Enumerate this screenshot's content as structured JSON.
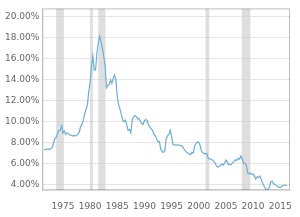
{
  "chart_data": {
    "type": "line",
    "color": "#6baed6",
    "grid": true,
    "xlim": [
      1971.2,
      2016.8
    ],
    "ylim": [
      3.5,
      20.8
    ],
    "xticks": [
      1975,
      1980,
      1985,
      1990,
      1995,
      2000,
      2005,
      2010,
      2015
    ],
    "yticks": [
      {
        "value": 4,
        "label": "4.00%"
      },
      {
        "value": 6,
        "label": "6.00%"
      },
      {
        "value": 8,
        "label": "8.00%"
      },
      {
        "value": 10,
        "label": "10.00%"
      },
      {
        "value": 12,
        "label": "12.00%"
      },
      {
        "value": 14,
        "label": "14.00%"
      },
      {
        "value": 16,
        "label": "16.00%"
      },
      {
        "value": 18,
        "label": "18.00%"
      },
      {
        "value": 20,
        "label": "20.00%"
      }
    ],
    "recession_bands": [
      [
        1973.75,
        1975.17
      ],
      [
        1980.0,
        1980.5
      ],
      [
        1981.5,
        1982.83
      ],
      [
        2001.25,
        2001.92
      ],
      [
        2007.92,
        2009.5
      ]
    ],
    "x": [
      1971.5,
      1971.75,
      1972.0,
      1972.25,
      1972.5,
      1972.75,
      1973.0,
      1973.25,
      1973.5,
      1973.75,
      1974.0,
      1974.25,
      1974.5,
      1974.75,
      1975.0,
      1975.25,
      1975.5,
      1975.75,
      1976.0,
      1976.25,
      1976.5,
      1976.75,
      1977.0,
      1977.25,
      1977.5,
      1977.75,
      1978.0,
      1978.25,
      1978.5,
      1978.75,
      1979.0,
      1979.25,
      1979.5,
      1979.75,
      1980.0,
      1980.25,
      1980.5,
      1980.75,
      1981.0,
      1981.25,
      1981.5,
      1981.75,
      1982.0,
      1982.25,
      1982.5,
      1982.75,
      1983.0,
      1983.25,
      1983.5,
      1983.75,
      1984.0,
      1984.25,
      1984.5,
      1984.75,
      1985.0,
      1985.25,
      1985.5,
      1985.75,
      1986.0,
      1986.25,
      1986.5,
      1986.75,
      1987.0,
      1987.25,
      1987.5,
      1987.75,
      1988.0,
      1988.25,
      1988.5,
      1988.75,
      1989.0,
      1989.25,
      1989.5,
      1989.75,
      1990.0,
      1990.25,
      1990.5,
      1990.75,
      1991.0,
      1991.25,
      1991.5,
      1991.75,
      1992.0,
      1992.25,
      1992.5,
      1992.75,
      1993.0,
      1993.25,
      1993.5,
      1993.75,
      1994.0,
      1994.25,
      1994.5,
      1994.75,
      1995.0,
      1995.25,
      1995.5,
      1995.75,
      1996.0,
      1996.25,
      1996.5,
      1996.75,
      1997.0,
      1997.25,
      1997.5,
      1997.75,
      1998.0,
      1998.25,
      1998.5,
      1998.75,
      1999.0,
      1999.25,
      1999.5,
      1999.75,
      2000.0,
      2000.25,
      2000.5,
      2000.75,
      2001.0,
      2001.25,
      2001.5,
      2001.75,
      2002.0,
      2002.25,
      2002.5,
      2002.75,
      2003.0,
      2003.25,
      2003.5,
      2003.75,
      2004.0,
      2004.25,
      2004.5,
      2004.75,
      2005.0,
      2005.25,
      2005.5,
      2005.75,
      2006.0,
      2006.25,
      2006.5,
      2006.75,
      2007.0,
      2007.25,
      2007.5,
      2007.75,
      2008.0,
      2008.25,
      2008.5,
      2008.75,
      2009.0,
      2009.25,
      2009.5,
      2009.75,
      2010.0,
      2010.25,
      2010.5,
      2010.75,
      2011.0,
      2011.25,
      2011.5,
      2011.75,
      2012.0,
      2012.25,
      2012.5,
      2012.75,
      2013.0,
      2013.25,
      2013.5,
      2013.75,
      2014.0,
      2014.25,
      2014.5,
      2014.75,
      2015.0,
      2015.25,
      2015.5,
      2015.75,
      2016.0,
      2016.25
    ],
    "values": [
      7.33,
      7.35,
      7.38,
      7.44,
      7.37,
      7.44,
      7.55,
      7.96,
      8.38,
      8.53,
      8.92,
      9.19,
      9.19,
      9.61,
      8.95,
      9.13,
      8.83,
      8.94,
      8.87,
      8.76,
      8.73,
      8.65,
      8.72,
      8.66,
      8.72,
      8.84,
      9.02,
      9.56,
      9.73,
      10.16,
      10.78,
      11.2,
      11.59,
      12.9,
      13.74,
      15.26,
      16.27,
      14.93,
      14.94,
      16.52,
      17.48,
      18.16,
      17.66,
      17.04,
      16.29,
      15.43,
      13.24,
      13.44,
      13.54,
      13.98,
      13.67,
      14.14,
      14.47,
      13.95,
      12.43,
      11.63,
      11.22,
      10.72,
      10.17,
      10.05,
      10.17,
      9.71,
      9.2,
      9.28,
      8.96,
      10.22,
      10.47,
      10.61,
      10.53,
      10.27,
      10.32,
      10.05,
      9.84,
      9.74,
      10.13,
      10.2,
      10.13,
      9.71,
      9.52,
      9.33,
      9.18,
      8.8,
      8.67,
      8.37,
      8.08,
      8.13,
      7.42,
      7.16,
      7.11,
      7.24,
      8.38,
      8.68,
      8.8,
      9.2,
      8.61,
      7.87,
      7.82,
      7.79,
      7.8,
      7.82,
      7.78,
      7.72,
      7.68,
      7.44,
      7.27,
      7.1,
      7.02,
      6.96,
      6.87,
      7.11,
      7.04,
      7.74,
      7.94,
      8.07,
      8.07,
      7.76,
      7.24,
      7.06,
      6.98,
      7.01,
      6.97,
      6.54,
      6.48,
      6.46,
      6.37,
      6.24,
      6.1,
      5.81,
      5.69,
      5.82,
      5.84,
      6.0,
      5.89,
      6.07,
      6.37,
      6.19,
      5.94,
      5.94,
      5.97,
      6.13,
      6.24,
      6.39,
      6.34,
      6.53,
      6.44,
      6.74,
      6.52,
      6.06,
      6.06,
      5.9,
      5.16,
      5.04,
      5.13,
      5.01,
      5.04,
      4.86,
      4.56,
      4.77,
      4.71,
      4.84,
      4.55,
      4.17,
      3.92,
      3.66,
      3.53,
      3.57,
      3.77,
      4.29,
      4.37,
      4.14,
      4.05,
      3.97,
      3.86,
      3.79,
      3.73,
      3.86,
      3.94,
      3.97,
      3.97,
      3.95
    ]
  }
}
